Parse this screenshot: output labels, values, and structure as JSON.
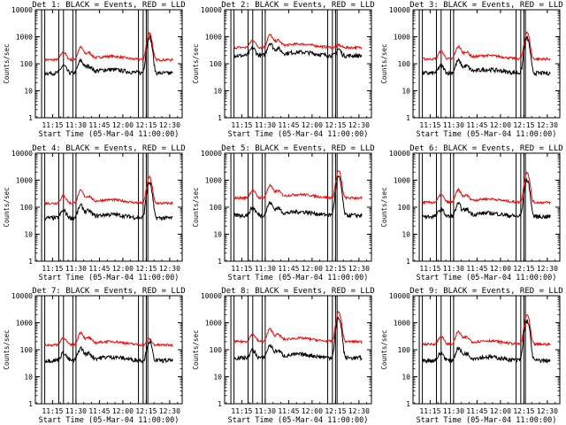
{
  "chart_data": {
    "type": "line",
    "layout": "3x3 grid",
    "xlabel": "Start Time (05-Mar-04 11:00:00)",
    "ylabel": "Counts/sec",
    "x_tick_labels": [
      "11:15",
      "11:30",
      "11:45",
      "12:00",
      "12:15",
      "12:30"
    ],
    "x_tick_minutes": [
      15,
      30,
      45,
      60,
      75,
      90
    ],
    "xlim_minutes": [
      4,
      98
    ],
    "y_scale": "log",
    "ylim": [
      1,
      10000
    ],
    "y_tick_labels": [
      "1",
      "10",
      "100",
      "1000",
      "10000"
    ],
    "series_colors": {
      "events": "#000000",
      "lld": "#ff0000"
    },
    "vertical_markers_minutes": [
      8,
      10,
      19,
      22,
      28,
      30,
      70,
      73,
      75,
      76
    ],
    "panels": [
      {
        "title": "Det 1: BLACK = Events, RED = LLD",
        "events_level": 45,
        "lld_level": 140,
        "peak_min": 77,
        "events_peak": 1000,
        "lld_peak": 1400
      },
      {
        "title": "Det 2: BLACK = Events, RED = LLD",
        "events_level": 200,
        "lld_level": 400,
        "peak_min": 77,
        "events_peak": 350,
        "lld_peak": 500
      },
      {
        "title": "Det 3: BLACK = Events, RED = LLD",
        "events_level": 45,
        "lld_level": 150,
        "peak_min": 77,
        "events_peak": 900,
        "lld_peak": 1500
      },
      {
        "title": "Det 4: BLACK = Events, RED = LLD",
        "events_level": 40,
        "lld_level": 140,
        "peak_min": 77,
        "events_peak": 800,
        "lld_peak": 1300
      },
      {
        "title": "Det 5: BLACK = Events, RED = LLD",
        "events_level": 50,
        "lld_level": 220,
        "peak_min": 77,
        "events_peak": 1300,
        "lld_peak": 2200
      },
      {
        "title": "Det 6: BLACK = Events, RED = LLD",
        "events_level": 45,
        "lld_level": 150,
        "peak_min": 77,
        "events_peak": 1000,
        "lld_peak": 2000
      },
      {
        "title": "Det 7: BLACK = Events, RED = LLD",
        "events_level": 40,
        "lld_level": 150,
        "peak_min": 77,
        "events_peak": 200,
        "lld_peak": 250
      },
      {
        "title": "Det 8: BLACK = Events, RED = LLD",
        "events_level": 50,
        "lld_level": 200,
        "peak_min": 77,
        "events_peak": 1500,
        "lld_peak": 2500
      },
      {
        "title": "Det 9: BLACK = Events, RED = LLD",
        "events_level": 40,
        "lld_level": 160,
        "peak_min": 77,
        "events_peak": 1200,
        "lld_peak": 2000
      }
    ]
  }
}
